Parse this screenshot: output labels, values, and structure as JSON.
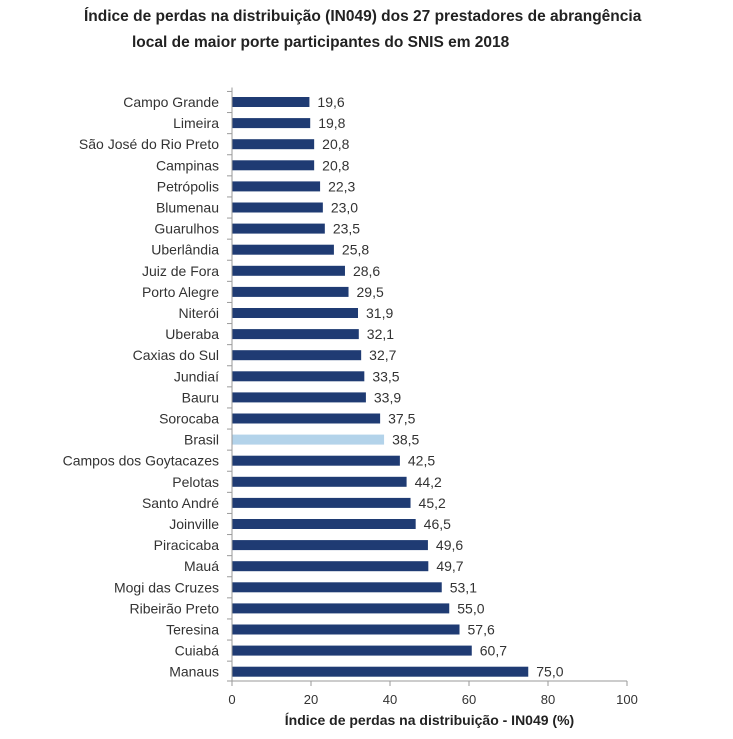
{
  "title": {
    "line1": "Índice de perdas na distribuição (IN049) dos 27 prestadores de abrangência",
    "line2": "local de maior porte participantes do SNIS em 2018"
  },
  "colors": {
    "bar": "#1f3b73",
    "highlight": "#b3d3ea",
    "axis": "#9a9a9a"
  },
  "chart_data": {
    "type": "bar",
    "orientation": "horizontal",
    "title": "Índice de perdas na distribuição (IN049) dos 27 prestadores de abrangência local de maior porte participantes do SNIS em 2018",
    "xlabel": "Índice de perdas na distribuição - IN049 (%)",
    "ylabel": "",
    "xlim": [
      0,
      100
    ],
    "xticks": [
      0,
      20,
      40,
      60,
      80,
      100
    ],
    "grid": false,
    "highlight": "Brasil",
    "categories": [
      "Campo Grande",
      "Limeira",
      "São José do Rio Preto",
      "Campinas",
      "Petrópolis",
      "Blumenau",
      "Guarulhos",
      "Uberlândia",
      "Juiz de Fora",
      "Porto Alegre",
      "Niterói",
      "Uberaba",
      "Caxias do Sul",
      "Jundiaí",
      "Bauru",
      "Sorocaba",
      "Brasil",
      "Campos dos Goytacazes",
      "Pelotas",
      "Santo André",
      "Joinville",
      "Piracicaba",
      "Mauá",
      "Mogi das Cruzes",
      "Ribeirão Preto",
      "Teresina",
      "Cuiabá",
      "Manaus"
    ],
    "values": [
      19.6,
      19.8,
      20.8,
      20.8,
      22.3,
      23.0,
      23.5,
      25.8,
      28.6,
      29.5,
      31.9,
      32.1,
      32.7,
      33.5,
      33.9,
      37.5,
      38.5,
      42.5,
      44.2,
      45.2,
      46.5,
      49.6,
      49.7,
      53.1,
      55.0,
      57.6,
      60.7,
      75.0
    ],
    "labels": [
      "19,6",
      "19,8",
      "20,8",
      "20,8",
      "22,3",
      "23,0",
      "23,5",
      "25,8",
      "28,6",
      "29,5",
      "31,9",
      "32,1",
      "32,7",
      "33,5",
      "33,9",
      "37,5",
      "38,5",
      "42,5",
      "44,2",
      "45,2",
      "46,5",
      "49,6",
      "49,7",
      "53,1",
      "55,0",
      "57,6",
      "60,7",
      "75,0"
    ]
  }
}
